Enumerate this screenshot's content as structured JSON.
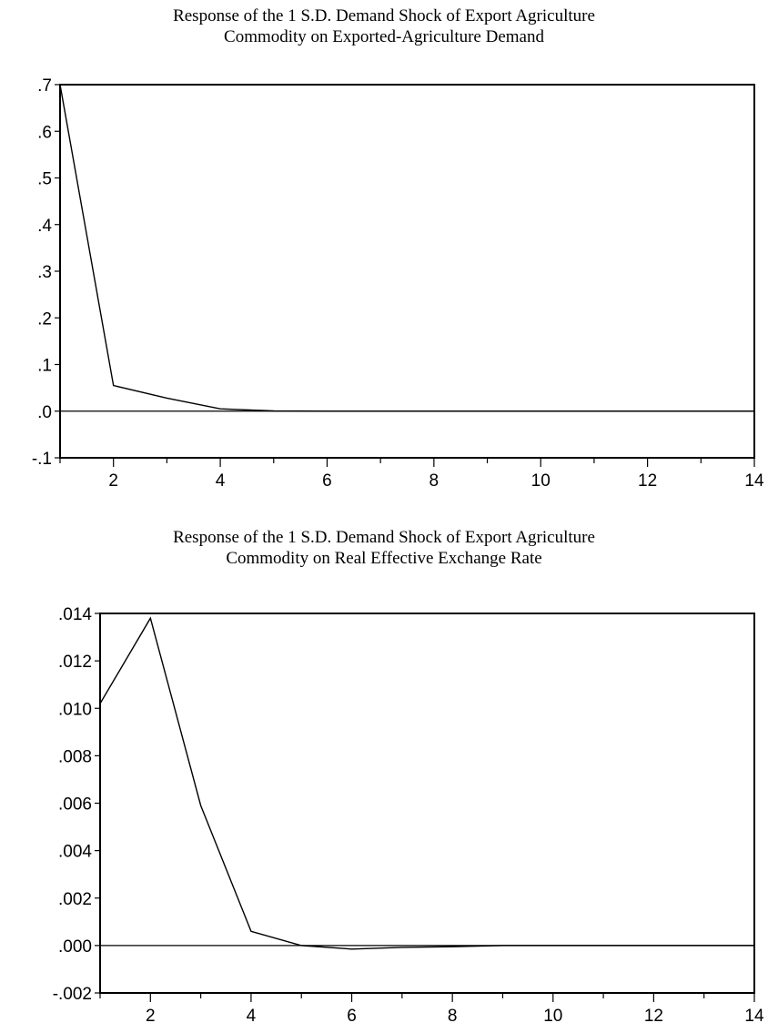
{
  "chart_data": [
    {
      "type": "line",
      "title_line1": "Response of the 1 S.D. Demand Shock of Export Agriculture",
      "title_line2": "Commodity on Exported-Agriculture Demand",
      "xlabel": "",
      "ylabel": "",
      "xlim": [
        1,
        14
      ],
      "ylim": [
        -0.1,
        0.7
      ],
      "x_ticks": [
        2,
        4,
        6,
        8,
        10,
        12,
        14
      ],
      "y_ticks": [
        -0.1,
        0.0,
        0.1,
        0.2,
        0.3,
        0.4,
        0.5,
        0.6,
        0.7
      ],
      "y_tick_labels": [
        "-.1",
        ".0",
        ".1",
        ".2",
        ".3",
        ".4",
        ".5",
        ".6",
        ".7"
      ],
      "zero_line": true,
      "grid": false,
      "series": [
        {
          "x": [
            1,
            2,
            3,
            4,
            5,
            6,
            7,
            8,
            9,
            10,
            11,
            12,
            13,
            14
          ],
          "values": [
            0.7,
            0.055,
            0.028,
            0.005,
            0.0005,
            0.0,
            0.0,
            0.0,
            0.0,
            0.0,
            0.0,
            0.0,
            0.0,
            0.0
          ]
        }
      ]
    },
    {
      "type": "line",
      "title_line1": "Response of the 1 S.D. Demand Shock of Export Agriculture",
      "title_line2": "Commodity on Real Effective Exchange Rate",
      "xlabel": "",
      "ylabel": "",
      "xlim": [
        1,
        14
      ],
      "ylim": [
        -0.002,
        0.014
      ],
      "x_ticks": [
        2,
        4,
        6,
        8,
        10,
        12,
        14
      ],
      "y_ticks": [
        -0.002,
        0.0,
        0.002,
        0.004,
        0.006,
        0.008,
        0.01,
        0.012,
        0.014
      ],
      "y_tick_labels": [
        "-.002",
        ".000",
        ".002",
        ".004",
        ".006",
        ".008",
        ".010",
        ".012",
        ".014"
      ],
      "zero_line": true,
      "grid": false,
      "series": [
        {
          "x": [
            1,
            2,
            3,
            4,
            5,
            6,
            7,
            8,
            9,
            10,
            11,
            12,
            13,
            14
          ],
          "values": [
            0.0102,
            0.0138,
            0.0059,
            0.0006,
            0.0,
            -0.00015,
            -8e-05,
            -5e-05,
            0.0,
            0.0,
            0.0,
            0.0,
            0.0,
            0.0
          ]
        }
      ]
    }
  ]
}
